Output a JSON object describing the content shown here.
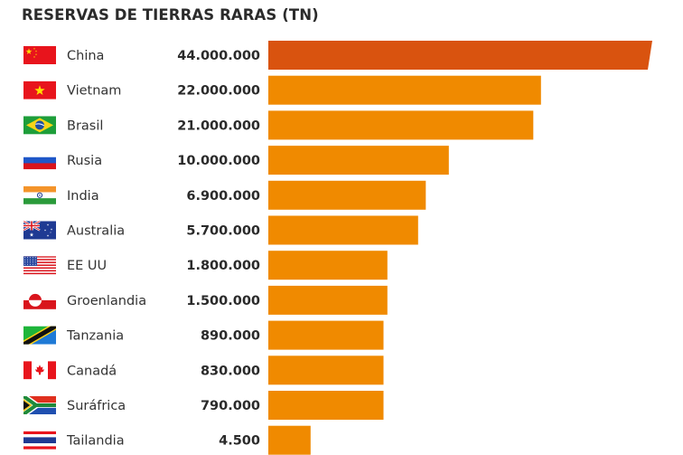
{
  "colors": {
    "highlight_bar": "#d9530f",
    "bar": "#f08a00",
    "text": "#333333"
  },
  "chart_data": {
    "type": "bar",
    "orientation": "horizontal",
    "title": "RESERVAS DE TIERRAS RARAS (TN)",
    "xlabel": "",
    "ylabel": "",
    "grid": false,
    "legend": "none",
    "categories": [
      "China",
      "Vietnam",
      "Brasil",
      "Rusia",
      "India",
      "Australia",
      "EE UU",
      "Groenlandia",
      "Tanzania",
      "Canadá",
      "Suráfrica",
      "Tailandia"
    ],
    "value_labels": [
      "44.000.000",
      "22.000.000",
      "21.000.000",
      "10.000.000",
      "6.900.000",
      "5.700.000",
      "1.800.000",
      "1.500.000",
      "890.000",
      "830.000",
      "790.000",
      "4.500"
    ],
    "values": [
      44000000,
      22000000,
      21000000,
      10000000,
      6900000,
      5700000,
      1800000,
      1500000,
      890000,
      830000,
      790000,
      4500
    ],
    "bar_scale_fraction": [
      1.0,
      0.71,
      0.69,
      0.47,
      0.41,
      0.39,
      0.31,
      0.31,
      0.3,
      0.3,
      0.3,
      0.11
    ],
    "flags": [
      "cn",
      "vn",
      "br",
      "ru",
      "in",
      "au",
      "us",
      "gl",
      "tz",
      "ca",
      "za",
      "th"
    ],
    "highlighted": "China",
    "axis_break_on_top_bar": true
  }
}
